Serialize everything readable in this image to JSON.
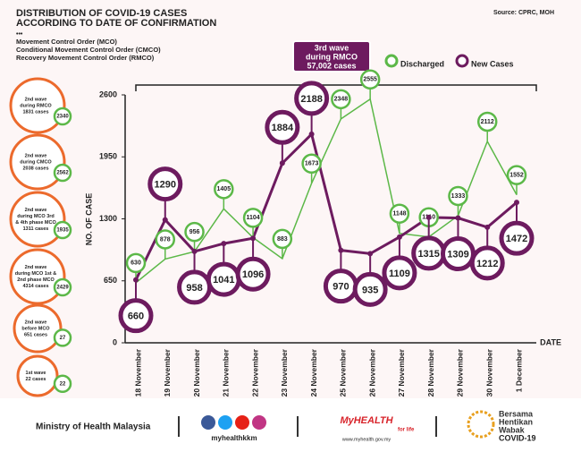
{
  "chart_data": {
    "type": "line",
    "title": [
      "DISTRIBUTION OF COVID-19 CASES",
      "ACCORDING TO DATE OF CONFIRMATION"
    ],
    "source": "Source: CPRC, MOH",
    "dots": "•••",
    "legend_notes": [
      "Movement Control Order (MCO)",
      "Conditional Movement Control Order (CMCO)",
      "Recovery Movement Control Order (RMCO)"
    ],
    "callout": [
      "3rd wave",
      "during RMCO",
      "57,002 cases"
    ],
    "ylabel": "NO. OF CASE",
    "xlabel": "DATE",
    "categories": [
      "18 November",
      "19 November",
      "20 November",
      "21 November",
      "22 November",
      "23 November",
      "24 November",
      "25 November",
      "26 November",
      "27 November",
      "28 November",
      "29 November",
      "30 November",
      "1 December"
    ],
    "series": [
      {
        "name": "Discharged",
        "color": "#5cb848",
        "values": [
          630,
          878,
          956,
          1405,
          1104,
          883,
          1673,
          2348,
          2555,
          1148,
          1110,
          1333,
          2112,
          1552
        ]
      },
      {
        "name": "New Cases",
        "color": "#6d1b5f",
        "values": [
          660,
          1290,
          958,
          1041,
          1096,
          1884,
          2188,
          970,
          935,
          1109,
          1315,
          1309,
          1212,
          1472
        ]
      }
    ],
    "ylim": [
      0,
      2600
    ],
    "yticks": [
      0,
      650,
      1300,
      1950,
      2600
    ],
    "waves": [
      {
        "label": [
          "2nd wave",
          "during RMCO",
          "1831 cases"
        ],
        "discharged": 2340
      },
      {
        "label": [
          "2nd wave",
          "during CMCO",
          "2038 cases"
        ],
        "discharged": 2562
      },
      {
        "label": [
          "2nd wave",
          "during MCO 3rd",
          "& 4th phase MCO",
          "1311 cases"
        ],
        "discharged": 1935
      },
      {
        "label": [
          "2nd wave",
          "during MCO 1st &",
          "2nd phase MCO",
          "4314 cases"
        ],
        "discharged": 2429
      },
      {
        "label": [
          "2nd wave",
          "before MCO",
          "651 cases"
        ],
        "discharged": 27
      },
      {
        "label": [
          "1st wave",
          "22 cases"
        ],
        "discharged": 22
      }
    ]
  },
  "footer": {
    "ministry": "Ministry of Health Malaysia",
    "handle": "myhealthkkm",
    "brand": "MyHEALTH",
    "tagline": "for life",
    "url": "www.myhealth.gov.my",
    "campaign": [
      "Bersama",
      "Hentikan",
      "Wabak",
      "COVID-19"
    ]
  }
}
